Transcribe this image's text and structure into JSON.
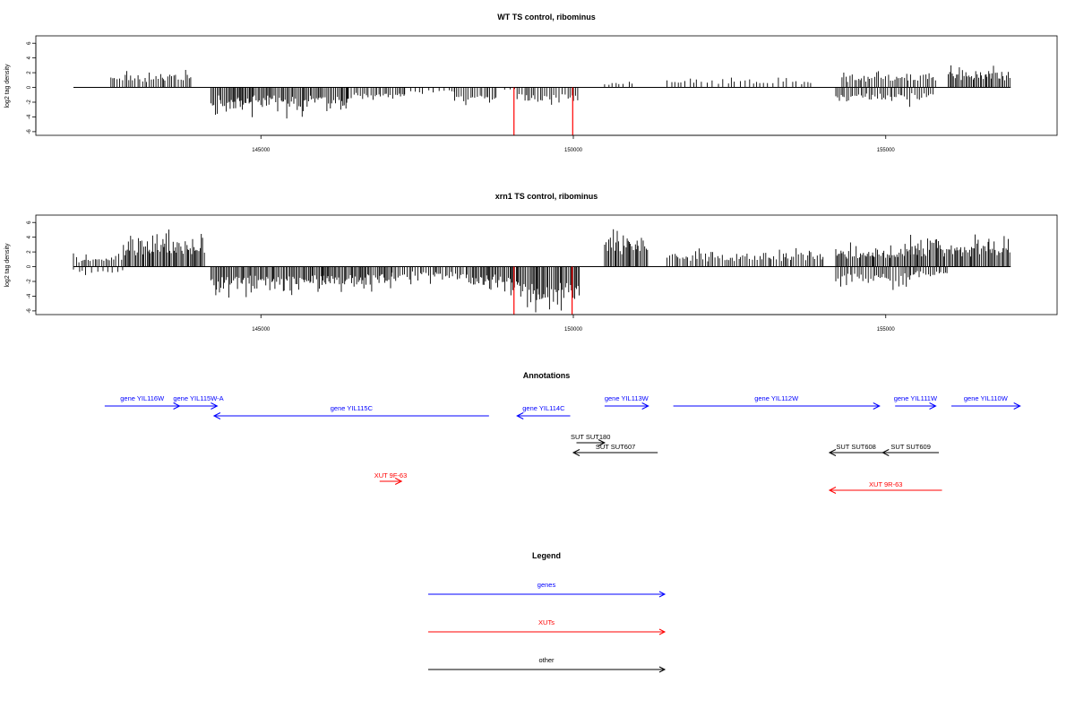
{
  "chart_data": [
    {
      "type": "bar",
      "title": "WT TS control, ribominus",
      "ylabel": "log2 tag density",
      "xlim": [
        142000,
        157200
      ],
      "ylim": [
        -6.5,
        7
      ],
      "x_ticks": [
        145000,
        150000,
        155000
      ],
      "x_tick_labels": [
        "145000",
        "150000",
        "155000"
      ],
      "y_ticks": [
        6,
        4,
        2,
        0,
        -2,
        -4,
        -6
      ],
      "y_tick_labels": [
        "6",
        "4",
        "2",
        "0",
        "-2",
        "-4",
        "-6"
      ],
      "baseline": {
        "x": [
          142000,
          157000
        ],
        "y": 0
      },
      "profile_segments": [
        {
          "x": [
            142600,
            143900
          ],
          "y": 2.0
        },
        {
          "x": [
            144200,
            146400
          ],
          "y": -3.0
        },
        {
          "x": [
            146400,
            147300
          ],
          "y": -1.6
        },
        {
          "x": [
            147300,
            148100
          ],
          "y": -0.8
        },
        {
          "x": [
            148100,
            148800
          ],
          "y": -2.2
        },
        {
          "x": [
            148900,
            149100
          ],
          "y": -0.4
        },
        {
          "x": [
            149100,
            150100
          ],
          "y": -2.2
        },
        {
          "x": [
            150500,
            151000
          ],
          "y": 0.8
        },
        {
          "x": [
            151500,
            153800
          ],
          "y": 1.2
        },
        {
          "x": [
            154200,
            155800
          ],
          "y": -2.0
        },
        {
          "x": [
            154300,
            155800
          ],
          "y": 2.0
        },
        {
          "x": [
            156000,
            157000
          ],
          "y": 2.6
        }
      ],
      "highlight": [
        {
          "x": 149050,
          "y": -6.5,
          "color": "#ff0000"
        },
        {
          "x": 149990,
          "y": -6.5,
          "color": "#ff0000"
        }
      ]
    },
    {
      "type": "bar",
      "title": "xrn1 TS control, ribominus",
      "ylabel": "log2 tag density",
      "xlim": [
        142000,
        157200
      ],
      "ylim": [
        -6.5,
        7
      ],
      "x_ticks": [
        145000,
        150000,
        155000
      ],
      "x_tick_labels": [
        "145000",
        "150000",
        "155000"
      ],
      "y_ticks": [
        6,
        4,
        2,
        0,
        -2,
        -4,
        -6
      ],
      "y_tick_labels": [
        "6",
        "4",
        "2",
        "0",
        "-2",
        "-4",
        "-6"
      ],
      "baseline": {
        "x": [
          142000,
          157000
        ],
        "y": 0
      },
      "profile_segments": [
        {
          "x": [
            142000,
            142800
          ],
          "y": -1.0
        },
        {
          "x": [
            142000,
            142800
          ],
          "y": 1.4
        },
        {
          "x": [
            142800,
            144100
          ],
          "y": 3.8
        },
        {
          "x": [
            144200,
            146000
          ],
          "y": -3.2
        },
        {
          "x": [
            146000,
            147100
          ],
          "y": -2.6
        },
        {
          "x": [
            147100,
            148300
          ],
          "y": -1.8
        },
        {
          "x": [
            148300,
            149000
          ],
          "y": -2.6
        },
        {
          "x": [
            149000,
            150100
          ],
          "y": -5.2
        },
        {
          "x": [
            150500,
            151200
          ],
          "y": 4.5
        },
        {
          "x": [
            151500,
            154000
          ],
          "y": 2.0
        },
        {
          "x": [
            154200,
            155400
          ],
          "y": -2.4
        },
        {
          "x": [
            154200,
            155400
          ],
          "y": 2.6
        },
        {
          "x": [
            155400,
            157000
          ],
          "y": 3.8
        },
        {
          "x": [
            155400,
            156000
          ],
          "y": -1.4
        }
      ],
      "highlight": [
        {
          "x": 149050,
          "y": -6.5,
          "color": "#ff0000"
        },
        {
          "x": 149980,
          "y": -6.5,
          "color": "#ff0000"
        }
      ]
    }
  ],
  "annotations": {
    "title": "Annotations",
    "colors": {
      "gene": "#0000ff",
      "xut": "#ff0000",
      "other": "#000000"
    },
    "items": [
      {
        "label": "gene YIL116W",
        "category": "gene",
        "start": 142500,
        "end": 143700,
        "strand": "+",
        "row": 0
      },
      {
        "label": "gene YIL115W-A",
        "category": "gene",
        "start": 143700,
        "end": 144300,
        "strand": "+",
        "row": 0
      },
      {
        "label": "gene YIL115C",
        "category": "gene",
        "start": 144250,
        "end": 148650,
        "strand": "-",
        "row": 1
      },
      {
        "label": "gene YIL114C",
        "category": "gene",
        "start": 149100,
        "end": 149950,
        "strand": "-",
        "row": 1
      },
      {
        "label": "gene YIL113W",
        "category": "gene",
        "start": 150500,
        "end": 151200,
        "strand": "+",
        "row": 0
      },
      {
        "label": "gene YIL112W",
        "category": "gene",
        "start": 151600,
        "end": 154900,
        "strand": "+",
        "row": 0
      },
      {
        "label": "gene YIL111W",
        "category": "gene",
        "start": 155150,
        "end": 155800,
        "strand": "+",
        "row": 0
      },
      {
        "label": "gene YIL110W",
        "category": "gene",
        "start": 156050,
        "end": 157150,
        "strand": "+",
        "row": 0
      },
      {
        "label": "SUT SUT180",
        "category": "other",
        "start": 150050,
        "end": 150500,
        "strand": "+",
        "row": 2
      },
      {
        "label": "SUT SUT607",
        "category": "other",
        "start": 150000,
        "end": 151350,
        "strand": "-",
        "row": 3
      },
      {
        "label": "SUT SUT608",
        "category": "other",
        "start": 154100,
        "end": 154950,
        "strand": "-",
        "row": 3
      },
      {
        "label": "SUT SUT609",
        "category": "other",
        "start": 154950,
        "end": 155850,
        "strand": "-",
        "row": 3
      },
      {
        "label": "XUT 9F-63",
        "category": "xut",
        "start": 146900,
        "end": 147250,
        "strand": "+",
        "row": 4
      },
      {
        "label": "XUT 9R-63",
        "category": "xut",
        "start": 154100,
        "end": 155900,
        "strand": "-",
        "row": 5
      }
    ]
  },
  "legend": {
    "title": "Legend",
    "items": [
      {
        "label": "genes",
        "color": "#0000ff"
      },
      {
        "label": "XUTs",
        "color": "#ff0000"
      },
      {
        "label": "other",
        "color": "#000000"
      }
    ]
  }
}
